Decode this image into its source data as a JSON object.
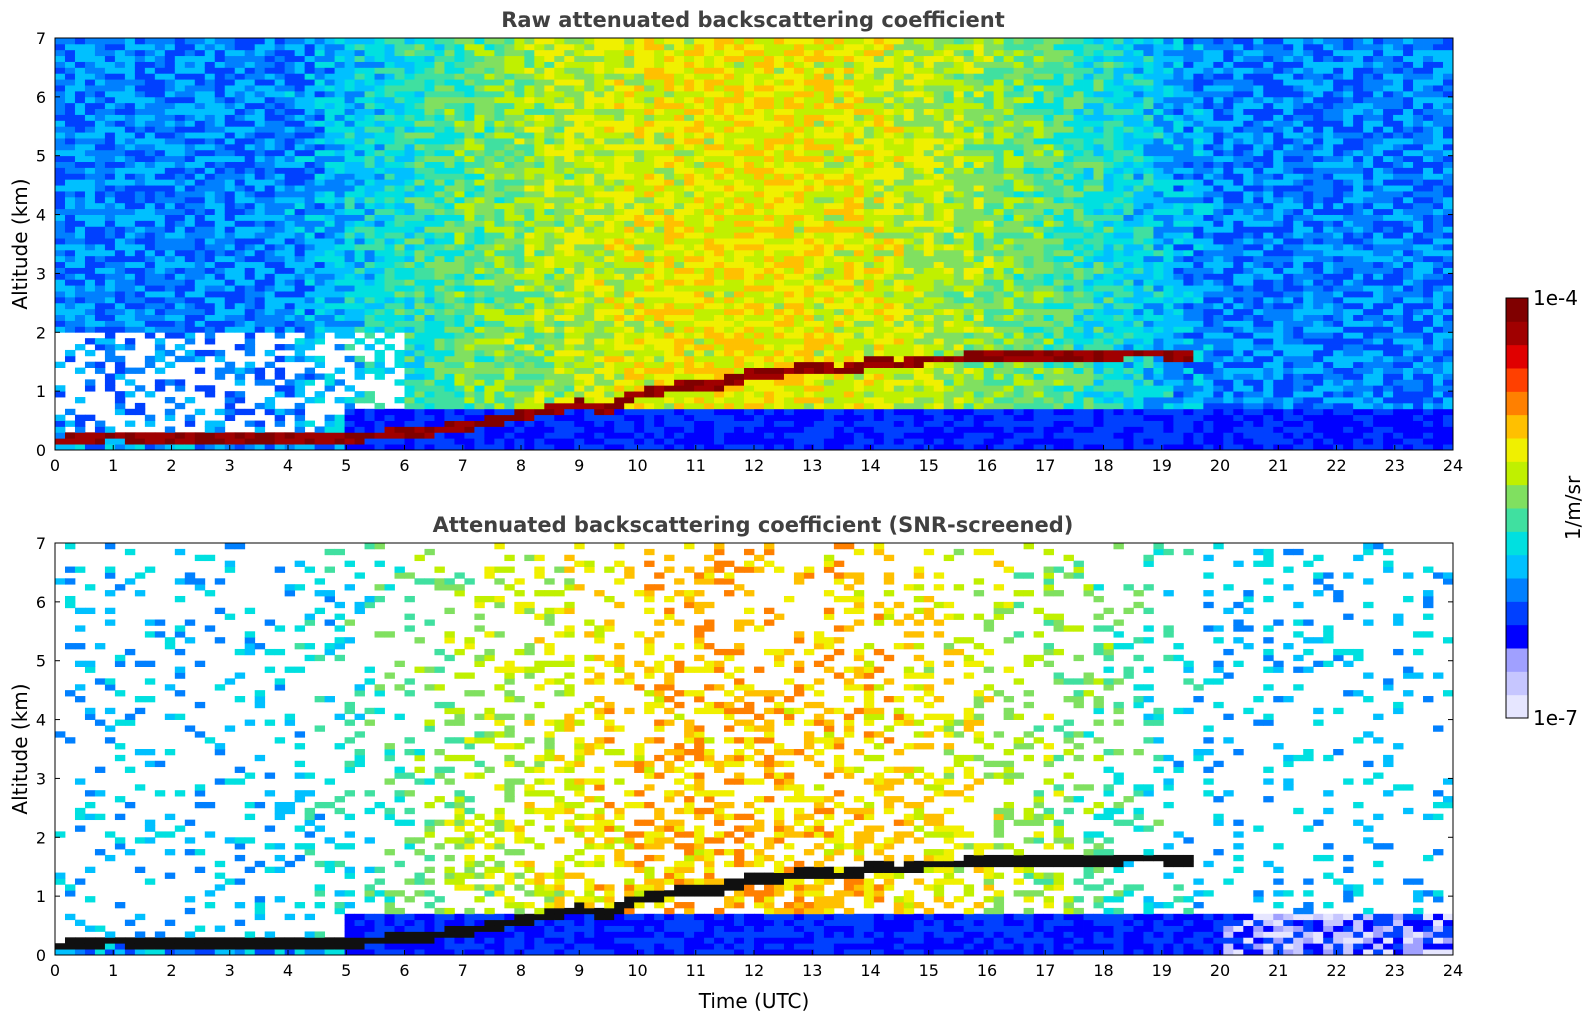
{
  "chart_data": [
    {
      "type": "heatmap",
      "title": "Raw attenuated backscattering coefficient",
      "xlabel": "",
      "ylabel": "Altitude (km)",
      "xlim": [
        0,
        24
      ],
      "ylim": [
        0,
        7
      ],
      "x_ticks": [
        "0",
        "1",
        "2",
        "3",
        "4",
        "5",
        "6",
        "7",
        "8",
        "9",
        "10",
        "11",
        "12",
        "13",
        "14",
        "15",
        "16",
        "17",
        "18",
        "19",
        "20",
        "21",
        "22",
        "23",
        "24"
      ],
      "y_ticks": [
        "0",
        "1",
        "2",
        "3",
        "4",
        "5",
        "6",
        "7"
      ],
      "screened": false,
      "cloud_layer": [
        [
          0.0,
          0.15
        ],
        [
          1.0,
          0.25
        ],
        [
          2.1,
          0.2
        ],
        [
          2.5,
          0.18
        ],
        [
          3.5,
          0.18
        ],
        [
          5.0,
          0.22
        ],
        [
          6.0,
          0.28
        ],
        [
          7.0,
          0.4
        ],
        [
          7.5,
          0.5
        ],
        [
          8.0,
          0.58
        ],
        [
          8.5,
          0.68
        ],
        [
          9.0,
          0.78
        ],
        [
          9.5,
          0.72
        ],
        [
          10.0,
          0.95
        ],
        [
          10.5,
          1.05
        ],
        [
          11.0,
          1.1
        ],
        [
          11.5,
          1.15
        ],
        [
          12.0,
          1.3
        ],
        [
          12.5,
          1.32
        ],
        [
          13.0,
          1.45
        ],
        [
          13.5,
          1.35
        ],
        [
          14.0,
          1.5
        ],
        [
          14.5,
          1.45
        ],
        [
          15.0,
          1.55
        ],
        [
          15.5,
          1.55
        ],
        [
          16.2,
          1.6
        ],
        [
          16.8,
          1.6
        ],
        [
          18.8,
          1.65
        ],
        [
          19.5,
          1.62
        ]
      ]
    },
    {
      "type": "heatmap",
      "title": "Attenuated backscattering coefficient (SNR-screened)",
      "xlabel": "Time (UTC)",
      "ylabel": "Altitude (km)",
      "xlim": [
        0,
        24
      ],
      "ylim": [
        0,
        7
      ],
      "x_ticks": [
        "0",
        "1",
        "2",
        "3",
        "4",
        "5",
        "6",
        "7",
        "8",
        "9",
        "10",
        "11",
        "12",
        "13",
        "14",
        "15",
        "16",
        "17",
        "18",
        "19",
        "20",
        "21",
        "22",
        "23",
        "24"
      ],
      "y_ticks": [
        "0",
        "1",
        "2",
        "3",
        "4",
        "5",
        "6",
        "7"
      ],
      "screened": true,
      "cloud_layer": [
        [
          0.0,
          0.15
        ],
        [
          1.0,
          0.25
        ],
        [
          2.1,
          0.2
        ],
        [
          2.5,
          0.18
        ],
        [
          3.5,
          0.18
        ],
        [
          5.0,
          0.22
        ],
        [
          6.0,
          0.28
        ],
        [
          7.0,
          0.4
        ],
        [
          7.5,
          0.5
        ],
        [
          8.0,
          0.58
        ],
        [
          8.5,
          0.68
        ],
        [
          9.0,
          0.78
        ],
        [
          9.5,
          0.72
        ],
        [
          10.0,
          0.95
        ],
        [
          10.5,
          1.05
        ],
        [
          11.0,
          1.1
        ],
        [
          11.5,
          1.15
        ],
        [
          12.0,
          1.3
        ],
        [
          12.5,
          1.32
        ],
        [
          13.0,
          1.45
        ],
        [
          13.5,
          1.35
        ],
        [
          14.0,
          1.5
        ],
        [
          14.5,
          1.45
        ],
        [
          15.0,
          1.55
        ],
        [
          15.5,
          1.55
        ],
        [
          16.2,
          1.6
        ],
        [
          16.8,
          1.6
        ],
        [
          18.8,
          1.65
        ],
        [
          19.5,
          1.62
        ]
      ]
    }
  ],
  "colorbar": {
    "label": "1/m/sr",
    "max_label": "1e-4",
    "min_label": "1e-7",
    "colors": [
      "#e6e6ff",
      "#c6c6ff",
      "#a0a0ff",
      "#0000ff",
      "#0040ff",
      "#0080ff",
      "#00c0ff",
      "#00e0e0",
      "#40e0a0",
      "#80e060",
      "#c0f000",
      "#f0f000",
      "#ffc000",
      "#ff8000",
      "#ff4000",
      "#e00000",
      "#a00000",
      "#800000"
    ]
  }
}
